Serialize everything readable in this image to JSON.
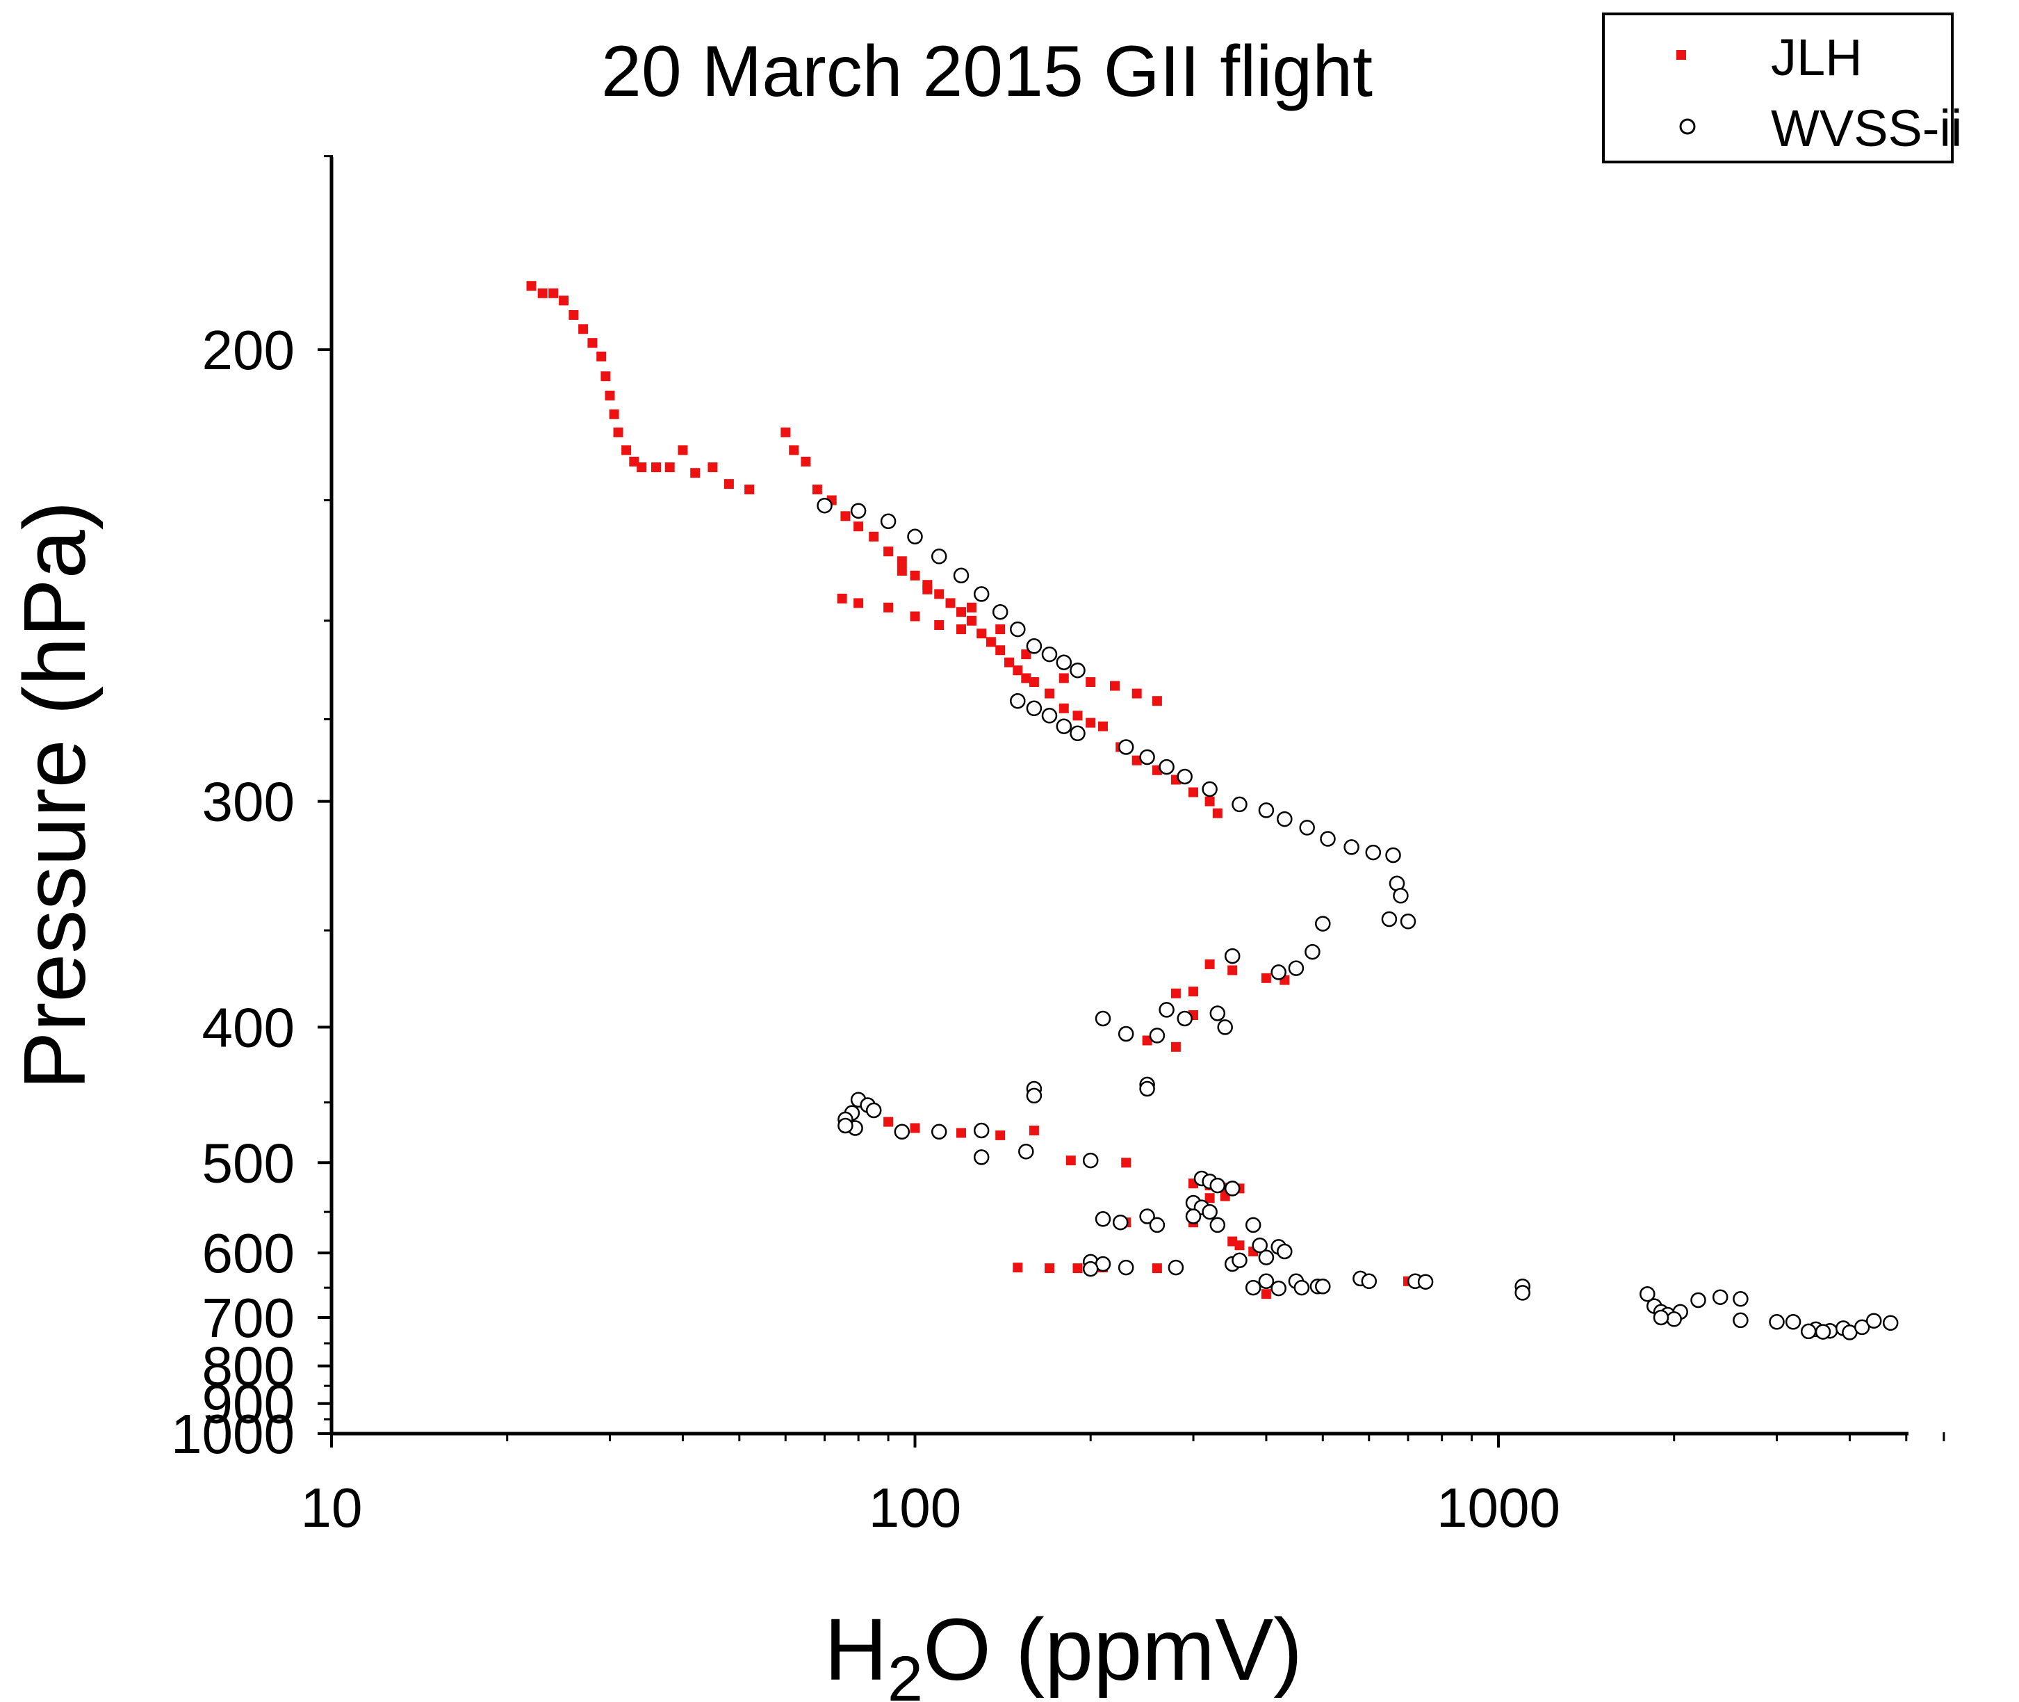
{
  "chart_data": {
    "type": "scatter",
    "title": "20 March 2015 GII flight",
    "xlabel_base": "H",
    "xlabel_sub": "2",
    "xlabel_rest": "O  (ppmV)",
    "ylabel": "Pressure  (hPa)",
    "x_scale": "log",
    "y_scale": "reciprocal (pressure increases downward)",
    "xlim": [
      10,
      5800
    ],
    "ylim": [
      150,
      1000
    ],
    "x_ticks": [
      10,
      100,
      1000
    ],
    "x_tick_labels": [
      "10",
      "100",
      "1000"
    ],
    "y_ticks": [
      200,
      300,
      400,
      500,
      600,
      700,
      800,
      900,
      1000
    ],
    "y_tick_labels": [
      "200",
      "300",
      "400",
      "500",
      "600",
      "700",
      "800",
      "900",
      "1000"
    ],
    "grid": false,
    "legend_position": "top-right",
    "colors": {
      "JLH": "#ee1111",
      "WVSS-ii": "#000000"
    },
    "series": [
      {
        "name": "JLH",
        "marker": "square",
        "points": [
          [
            22,
            191
          ],
          [
            23,
            192
          ],
          [
            24,
            192
          ],
          [
            25,
            193
          ],
          [
            26,
            195
          ],
          [
            27,
            197
          ],
          [
            28,
            199
          ],
          [
            29,
            201
          ],
          [
            29.5,
            204
          ],
          [
            30,
            207
          ],
          [
            30.5,
            210
          ],
          [
            31,
            213
          ],
          [
            32,
            216
          ],
          [
            33,
            218
          ],
          [
            34,
            219
          ],
          [
            36,
            219
          ],
          [
            38,
            219
          ],
          [
            40,
            216
          ],
          [
            42,
            220
          ],
          [
            45,
            219
          ],
          [
            48,
            222
          ],
          [
            52,
            223
          ],
          [
            60,
            213
          ],
          [
            62,
            216
          ],
          [
            65,
            218
          ],
          [
            68,
            223
          ],
          [
            72,
            225
          ],
          [
            76,
            228
          ],
          [
            80,
            230
          ],
          [
            85,
            232
          ],
          [
            90,
            235
          ],
          [
            95,
            237
          ],
          [
            100,
            240
          ],
          [
            105,
            242
          ],
          [
            110,
            244
          ],
          [
            115,
            246
          ],
          [
            120,
            248
          ],
          [
            125,
            250
          ],
          [
            130,
            253
          ],
          [
            135,
            255
          ],
          [
            140,
            257
          ],
          [
            145,
            260
          ],
          [
            150,
            262
          ],
          [
            155,
            264
          ],
          [
            160,
            265
          ],
          [
            170,
            268
          ],
          [
            180,
            272
          ],
          [
            190,
            274
          ],
          [
            200,
            276
          ],
          [
            210,
            277
          ],
          [
            75,
            245
          ],
          [
            80,
            246
          ],
          [
            90,
            247
          ],
          [
            100,
            249
          ],
          [
            110,
            251
          ],
          [
            120,
            252
          ],
          [
            95,
            239
          ],
          [
            105,
            243
          ],
          [
            125,
            247
          ],
          [
            140,
            252
          ],
          [
            155,
            258
          ],
          [
            180,
            264
          ],
          [
            200,
            265
          ],
          [
            220,
            266
          ],
          [
            240,
            268
          ],
          [
            260,
            270
          ],
          [
            225,
            283
          ],
          [
            240,
            287
          ],
          [
            260,
            290
          ],
          [
            280,
            293
          ],
          [
            300,
            297
          ],
          [
            320,
            300
          ],
          [
            330,
            304
          ],
          [
            320,
            366
          ],
          [
            350,
            369
          ],
          [
            400,
            373
          ],
          [
            430,
            374
          ],
          [
            230,
            403
          ],
          [
            250,
            408
          ],
          [
            280,
            412
          ],
          [
            300,
            393
          ],
          [
            300,
            380
          ],
          [
            280,
            381
          ],
          [
            90,
            465
          ],
          [
            100,
            470
          ],
          [
            110,
            472
          ],
          [
            120,
            474
          ],
          [
            140,
            476
          ],
          [
            160,
            472
          ],
          [
            185,
            498
          ],
          [
            230,
            500
          ],
          [
            300,
            520
          ],
          [
            320,
            522
          ],
          [
            340,
            524
          ],
          [
            360,
            525
          ],
          [
            300,
            540
          ],
          [
            320,
            535
          ],
          [
            340,
            533
          ],
          [
            210,
            560
          ],
          [
            230,
            562
          ],
          [
            300,
            562
          ],
          [
            350,
            585
          ],
          [
            360,
            590
          ],
          [
            380,
            598
          ],
          [
            150,
            620
          ],
          [
            170,
            621
          ],
          [
            190,
            621
          ],
          [
            210,
            620
          ],
          [
            260,
            621
          ],
          [
            400,
            660
          ],
          [
            420,
            650
          ],
          [
            600,
            640
          ],
          [
            700,
            640
          ]
        ]
      },
      {
        "name": "WVSS-ii",
        "marker": "open-circle",
        "points": [
          [
            70,
            226
          ],
          [
            80,
            227
          ],
          [
            90,
            229
          ],
          [
            100,
            232
          ],
          [
            110,
            236
          ],
          [
            120,
            240
          ],
          [
            130,
            244
          ],
          [
            140,
            248
          ],
          [
            150,
            252
          ],
          [
            160,
            256
          ],
          [
            170,
            258
          ],
          [
            180,
            260
          ],
          [
            190,
            262
          ],
          [
            150,
            270
          ],
          [
            160,
            272
          ],
          [
            170,
            274
          ],
          [
            180,
            277
          ],
          [
            190,
            279
          ],
          [
            230,
            283
          ],
          [
            250,
            286
          ],
          [
            270,
            289
          ],
          [
            290,
            292
          ],
          [
            320,
            296
          ],
          [
            360,
            301
          ],
          [
            400,
            303
          ],
          [
            430,
            306
          ],
          [
            470,
            309
          ],
          [
            510,
            313
          ],
          [
            560,
            316
          ],
          [
            610,
            318
          ],
          [
            660,
            319
          ],
          [
            670,
            330
          ],
          [
            680,
            335
          ],
          [
            650,
            345
          ],
          [
            700,
            346
          ],
          [
            500,
            347
          ],
          [
            480,
            360
          ],
          [
            450,
            368
          ],
          [
            420,
            370
          ],
          [
            350,
            362
          ],
          [
            210,
            395
          ],
          [
            230,
            404
          ],
          [
            260,
            405
          ],
          [
            270,
            390
          ],
          [
            290,
            395
          ],
          [
            330,
            392
          ],
          [
            340,
            400
          ],
          [
            250,
            437
          ],
          [
            250,
            440
          ],
          [
            160,
            440
          ],
          [
            160,
            445
          ],
          [
            80,
            448
          ],
          [
            83,
            452
          ],
          [
            85,
            456
          ],
          [
            78,
            458
          ],
          [
            76,
            463
          ],
          [
            79,
            470
          ],
          [
            76,
            468
          ],
          [
            95,
            473
          ],
          [
            110,
            473
          ],
          [
            130,
            472
          ],
          [
            155,
            490
          ],
          [
            130,
            495
          ],
          [
            200,
            498
          ],
          [
            310,
            515
          ],
          [
            320,
            518
          ],
          [
            330,
            522
          ],
          [
            350,
            525
          ],
          [
            300,
            540
          ],
          [
            310,
            545
          ],
          [
            320,
            550
          ],
          [
            300,
            555
          ],
          [
            210,
            558
          ],
          [
            225,
            562
          ],
          [
            250,
            555
          ],
          [
            260,
            565
          ],
          [
            330,
            565
          ],
          [
            380,
            565
          ],
          [
            390,
            590
          ],
          [
            420,
            592
          ],
          [
            430,
            598
          ],
          [
            400,
            606
          ],
          [
            350,
            615
          ],
          [
            360,
            610
          ],
          [
            200,
            612
          ],
          [
            210,
            615
          ],
          [
            230,
            620
          ],
          [
            280,
            620
          ],
          [
            200,
            622
          ],
          [
            400,
            640
          ],
          [
            450,
            640
          ],
          [
            490,
            648
          ],
          [
            380,
            650
          ],
          [
            420,
            651
          ],
          [
            460,
            650
          ],
          [
            500,
            648
          ],
          [
            580,
            636
          ],
          [
            600,
            640
          ],
          [
            720,
            640
          ],
          [
            750,
            641
          ],
          [
            1100,
            648
          ],
          [
            1100,
            658
          ],
          [
            1800,
            660
          ],
          [
            1850,
            680
          ],
          [
            1900,
            690
          ],
          [
            1950,
            695
          ],
          [
            2050,
            690
          ],
          [
            2200,
            670
          ],
          [
            2400,
            665
          ],
          [
            2600,
            668
          ],
          [
            2000,
            703
          ],
          [
            1900,
            700
          ],
          [
            2600,
            705
          ],
          [
            3000,
            708
          ],
          [
            3200,
            708
          ],
          [
            3500,
            722
          ],
          [
            3700,
            725
          ],
          [
            3900,
            720
          ],
          [
            4000,
            728
          ],
          [
            4200,
            718
          ],
          [
            4400,
            706
          ],
          [
            4700,
            710
          ],
          [
            3400,
            726
          ],
          [
            3600,
            727
          ]
        ]
      }
    ]
  }
}
